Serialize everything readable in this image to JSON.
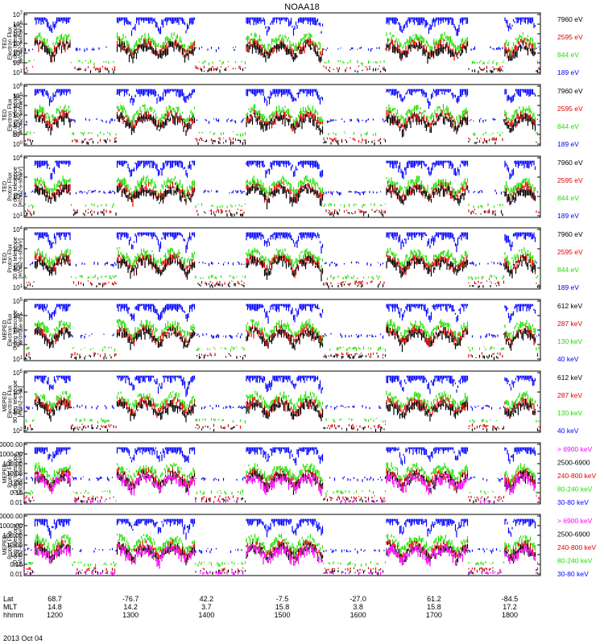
{
  "title": "NOAA18",
  "date_label": "2013 Oct 04",
  "colors": {
    "black": "#000000",
    "red": "#e60000",
    "green": "#22e000",
    "blue": "#0000ff",
    "magenta": "#ff00ff",
    "axis": "#000000"
  },
  "time_axis": {
    "row_labels": [
      "Lat",
      "MLT",
      "hhmm"
    ],
    "columns": [
      {
        "hhmm": "1200",
        "lat": "68.7",
        "mlt": "14.8"
      },
      {
        "hhmm": "1300",
        "lat": "-76.7",
        "mlt": "14.2"
      },
      {
        "hhmm": "1400",
        "lat": "42.2",
        "mlt": "3.7"
      },
      {
        "hhmm": "1500",
        "lat": "-7.5",
        "mlt": "15.8"
      },
      {
        "hhmm": "1600",
        "lat": "-27.0",
        "mlt": "3.8"
      },
      {
        "hhmm": "1700",
        "lat": "61.2",
        "mlt": "15.8"
      },
      {
        "hhmm": "1800",
        "lat": "-84.5",
        "mlt": "17.2"
      }
    ]
  },
  "chart_data": [
    {
      "type": "scatter",
      "scale": "log",
      "ylabel_lines": [
        "TED",
        "Electron Flux",
        "0 deg telescope",
        "[#/cm2-s-str-eV]"
      ],
      "ylim": [
        10,
        10000000
      ],
      "tick_labels": [
        "10^1",
        "10^2",
        "10^3",
        "10^4",
        "10^5",
        "10^6",
        "10^7"
      ],
      "series": [
        {
          "name": "7960 eV",
          "color": "black"
        },
        {
          "name": "2595 eV",
          "color": "red"
        },
        {
          "name": "844 eV",
          "color": "green"
        },
        {
          "name": "189 eV",
          "color": "blue"
        }
      ]
    },
    {
      "type": "scatter",
      "scale": "log",
      "ylabel_lines": [
        "TED",
        "Electron Flux",
        "30 deg telescope",
        "[#/cm2-s-str-eV]"
      ],
      "ylim": [
        1,
        10000000
      ],
      "tick_labels": [
        "10^0",
        "10^1",
        "10^2",
        "10^3",
        "10^4",
        "10^5",
        "10^6"
      ],
      "series": [
        {
          "name": "7960 eV",
          "color": "black"
        },
        {
          "name": "2595 eV",
          "color": "red"
        },
        {
          "name": "844 eV",
          "color": "green"
        },
        {
          "name": "189 eV",
          "color": "blue"
        }
      ]
    },
    {
      "type": "scatter",
      "scale": "log",
      "ylabel_lines": [
        "TED",
        "Proton Flux",
        "0 deg telescope",
        "[#/cm2-s-str-eV]"
      ],
      "ylim": [
        10,
        100000
      ],
      "tick_labels": [
        "10^1",
        "10^2",
        "10^3",
        "10^4"
      ],
      "series": [
        {
          "name": "7960 eV",
          "color": "black"
        },
        {
          "name": "2595 eV",
          "color": "red"
        },
        {
          "name": "844 eV",
          "color": "green"
        },
        {
          "name": "189 eV",
          "color": "blue"
        }
      ]
    },
    {
      "type": "scatter",
      "scale": "log",
      "ylabel_lines": [
        "TED",
        "Proton Flux",
        "30 deg telescope",
        "[#/cm2-s-str-eV]"
      ],
      "ylim": [
        10,
        100000
      ],
      "tick_labels": [
        "10^1",
        "10^2",
        "10^3",
        "10^4"
      ],
      "series": [
        {
          "name": "7960 eV",
          "color": "black"
        },
        {
          "name": "2595 eV",
          "color": "red"
        },
        {
          "name": "844 eV",
          "color": "green"
        },
        {
          "name": "189 eV",
          "color": "blue"
        }
      ]
    },
    {
      "type": "scatter",
      "scale": "log",
      "ylabel_lines": [
        "MEPED",
        "Electron Flux",
        "0 deg telescope",
        "[#/cm2-s-str]"
      ],
      "ylim": [
        10,
        100000
      ],
      "tick_labels": [
        "10^1",
        "10^2",
        "10^3",
        "10^4",
        "10^5"
      ],
      "series": [
        {
          "name": "612 keV",
          "color": "black"
        },
        {
          "name": "287 keV",
          "color": "red"
        },
        {
          "name": "130 keV",
          "color": "green"
        },
        {
          "name": "40 keV",
          "color": "blue"
        }
      ]
    },
    {
      "type": "scatter",
      "scale": "log",
      "ylabel_lines": [
        "MEPED",
        "Electron Flux",
        "90 deg telescope",
        "[#/cm2-s-str]"
      ],
      "ylim": [
        10,
        1000000
      ],
      "tick_labels": [
        "10^2",
        "10^3",
        "10^4",
        "10^5"
      ],
      "series": [
        {
          "name": "612 keV",
          "color": "black"
        },
        {
          "name": "287 keV",
          "color": "red"
        },
        {
          "name": "130 keV",
          "color": "green"
        },
        {
          "name": "40 keV",
          "color": "blue"
        }
      ]
    },
    {
      "type": "scatter",
      "scale": "log",
      "ylabel_lines": [
        "MEPED",
        "Proton Flux",
        "0 deg telescope",
        "[#/cm2-s-str-keV]"
      ],
      "ylim": [
        0.01,
        10000
      ],
      "tick_labels": [
        "10000.00",
        "1000.00",
        "100.00",
        "10.00",
        "1.00",
        "0.10",
        "0.01"
      ],
      "series": [
        {
          "name": "> 6900 keV",
          "color": "magenta"
        },
        {
          "name": "2500-6900",
          "color": "black"
        },
        {
          "name": "240-800 keV",
          "color": "red"
        },
        {
          "name": "80-240 keV",
          "color": "green"
        },
        {
          "name": "30-80 keV",
          "color": "blue"
        }
      ]
    },
    {
      "type": "scatter",
      "scale": "log",
      "ylabel_lines": [
        "MEPED",
        "Proton Flux",
        "90 deg telescope",
        "[#/cm2-s-str-keV]"
      ],
      "ylim": [
        0.01,
        10000
      ],
      "tick_labels": [
        "10000.00",
        "1000.00",
        "100.00",
        "10.00",
        "1.00",
        "0.10",
        "0.01"
      ],
      "series": [
        {
          "name": "> 6900 keV",
          "color": "magenta"
        },
        {
          "name": "2500-6900",
          "color": "black"
        },
        {
          "name": "240-800 keV",
          "color": "red"
        },
        {
          "name": "80-240 keV",
          "color": "green"
        },
        {
          "name": "30-80 keV",
          "color": "blue"
        }
      ]
    }
  ]
}
